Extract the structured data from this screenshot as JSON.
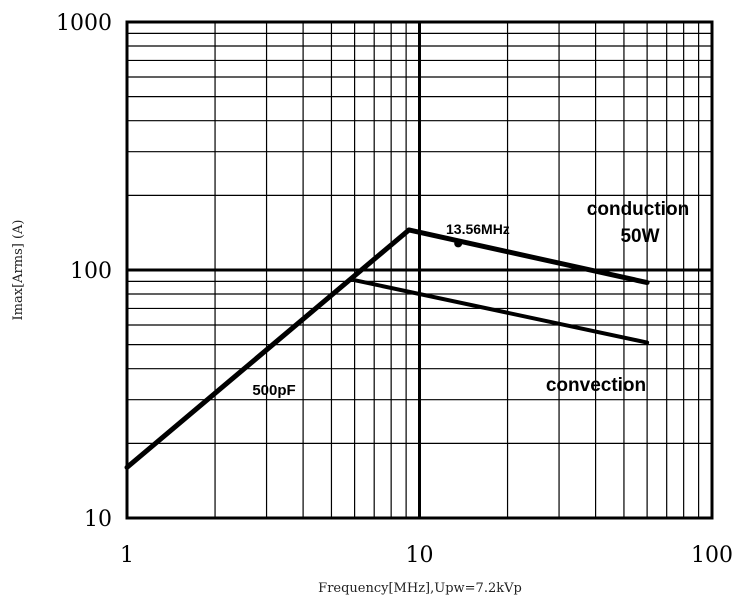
{
  "chart_data": {
    "type": "line",
    "xscale": "log",
    "yscale": "log",
    "xlim": [
      1,
      100
    ],
    "ylim": [
      10,
      1000
    ],
    "xlabel": "Frequency[MHz],Upw=7.2kVp",
    "ylabel": "Imax[Arms] (A)",
    "x_ticks": [
      "1",
      "10",
      "100"
    ],
    "y_ticks": [
      "10",
      "100",
      "1000"
    ],
    "grid": true,
    "series": [
      {
        "x": [
          1,
          9.2
        ],
        "y": [
          16,
          145
        ]
      },
      {
        "x": [
          9.2,
          60
        ],
        "y": [
          145,
          89
        ]
      },
      {
        "x": [
          6,
          60
        ],
        "y": [
          91,
          51
        ]
      }
    ],
    "markers": [
      {
        "x": 13.56,
        "y": 128
      }
    ],
    "annotations": [
      {
        "text": "13.56MHz",
        "x": 13.56,
        "y": 128
      },
      {
        "text": "conduction",
        "x": 45,
        "y": 185
      },
      {
        "text": "50W",
        "x": 45,
        "y": 145
      },
      {
        "text": "convection",
        "x": 42,
        "y": 50
      },
      {
        "text": "500pF",
        "x": 2.55,
        "y": 50
      }
    ]
  }
}
